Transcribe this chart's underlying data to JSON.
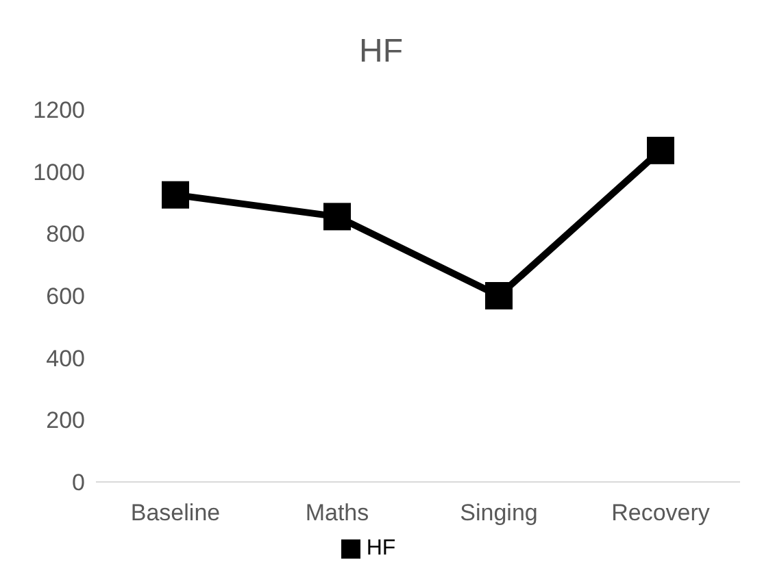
{
  "chart_data": {
    "type": "line",
    "title": "HF",
    "categories": [
      "Baseline",
      "Maths",
      "Singing",
      "Recovery"
    ],
    "series": [
      {
        "name": "HF",
        "color": "#000000",
        "values": [
          925,
          855,
          600,
          1068
        ]
      }
    ],
    "ylim": [
      0,
      1200
    ],
    "yticks": [
      0,
      200,
      400,
      600,
      800,
      1000,
      1200
    ],
    "grid": false,
    "legend": "bottom",
    "marker": "square",
    "line_style": "solid"
  }
}
